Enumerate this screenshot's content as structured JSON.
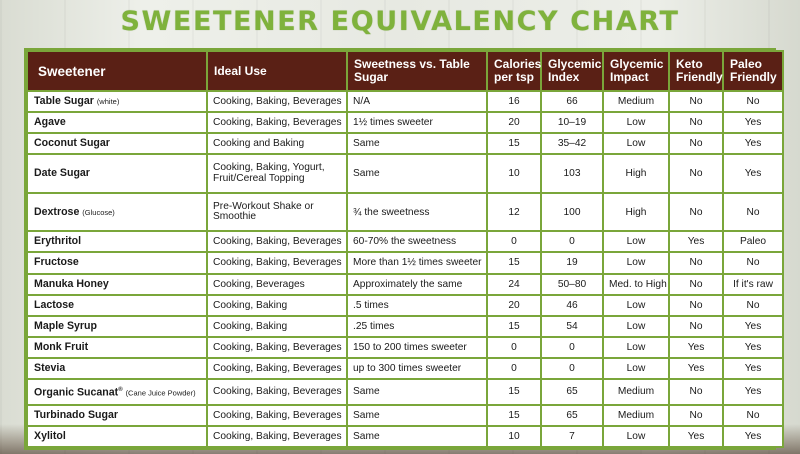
{
  "title": "SWEETENER EQUIVALENCY CHART",
  "headers": [
    "Sweetener",
    "Ideal Use",
    "Sweetness vs. Table Sugar",
    "Calories per tsp",
    "Glycemic Index",
    "Glycemic Impact",
    "Keto Friendly",
    "Paleo Friendly"
  ],
  "rows": [
    {
      "name": "Table Sugar",
      "note": "(white)",
      "mark": "",
      "use": "Cooking, Baking, Beverages",
      "sweetness": "N/A",
      "calories": "16",
      "gi": "66",
      "impact": "Medium",
      "keto": "No",
      "paleo": "No"
    },
    {
      "name": "Agave",
      "note": "",
      "mark": "",
      "use": "Cooking, Baking, Beverages",
      "sweetness": "1½ times sweeter",
      "calories": "20",
      "gi": "10–19",
      "impact": "Low",
      "keto": "No",
      "paleo": "Yes"
    },
    {
      "name": "Coconut Sugar",
      "note": "",
      "mark": "",
      "use": "Cooking and Baking",
      "sweetness": "Same",
      "calories": "15",
      "gi": "35–42",
      "impact": "Low",
      "keto": "No",
      "paleo": "Yes"
    },
    {
      "name": "Date Sugar",
      "note": "",
      "mark": "",
      "use": "Cooking, Baking, Yogurt, Fruit/Cereal Topping",
      "sweetness": "Same",
      "calories": "10",
      "gi": "103",
      "impact": "High",
      "keto": "No",
      "paleo": "Yes"
    },
    {
      "name": "Dextrose",
      "note": "(Glucose)",
      "mark": "",
      "use": "Pre-Workout Shake or Smoothie",
      "sweetness": "¾ the sweetness",
      "calories": "12",
      "gi": "100",
      "impact": "High",
      "keto": "No",
      "paleo": "No"
    },
    {
      "name": "Erythritol",
      "note": "",
      "mark": "",
      "use": "Cooking, Baking, Beverages",
      "sweetness": "60-70% the sweetness",
      "calories": "0",
      "gi": "0",
      "impact": "Low",
      "keto": "Yes",
      "paleo": "Paleo"
    },
    {
      "name": "Fructose",
      "note": "",
      "mark": "",
      "use": "Cooking, Baking, Beverages",
      "sweetness": "More than 1½ times sweeter",
      "calories": "15",
      "gi": "19",
      "impact": "Low",
      "keto": "No",
      "paleo": "No"
    },
    {
      "name": "Manuka Honey",
      "note": "",
      "mark": "",
      "use": "Cooking, Beverages",
      "sweetness": "Approximately the same",
      "calories": "24",
      "gi": "50–80",
      "impact": "Med. to High",
      "keto": "No",
      "paleo": "If it's raw"
    },
    {
      "name": "Lactose",
      "note": "",
      "mark": "",
      "use": "Cooking, Baking",
      "sweetness": ".5 times",
      "calories": "20",
      "gi": "46",
      "impact": "Low",
      "keto": "No",
      "paleo": "No"
    },
    {
      "name": "Maple Syrup",
      "note": "",
      "mark": "",
      "use": "Cooking, Baking",
      "sweetness": ".25 times",
      "calories": "15",
      "gi": "54",
      "impact": "Low",
      "keto": "No",
      "paleo": "Yes"
    },
    {
      "name": "Monk Fruit",
      "note": "",
      "mark": "",
      "use": "Cooking, Baking, Beverages",
      "sweetness": "150 to 200 times sweeter",
      "calories": "0",
      "gi": "0",
      "impact": "Low",
      "keto": "Yes",
      "paleo": "Yes"
    },
    {
      "name": "Stevia",
      "note": "",
      "mark": "",
      "use": "Cooking, Baking, Beverages",
      "sweetness": "up to 300 times sweeter",
      "calories": "0",
      "gi": "0",
      "impact": "Low",
      "keto": "Yes",
      "paleo": "Yes"
    },
    {
      "name": "Organic Sucanat",
      "note": "(Cane Juice Powder)",
      "mark": "®",
      "use": "Cooking, Baking, Beverages",
      "sweetness": "Same",
      "calories": "15",
      "gi": "65",
      "impact": "Medium",
      "keto": "No",
      "paleo": "Yes"
    },
    {
      "name": "Turbinado Sugar",
      "note": "",
      "mark": "",
      "use": "Cooking, Baking, Beverages",
      "sweetness": "Same",
      "calories": "15",
      "gi": "65",
      "impact": "Medium",
      "keto": "No",
      "paleo": "No"
    },
    {
      "name": "Xylitol",
      "note": "",
      "mark": "",
      "use": "Cooking, Baking, Beverages",
      "sweetness": "Same",
      "calories": "10",
      "gi": "7",
      "impact": "Low",
      "keto": "Yes",
      "paleo": "Yes"
    }
  ],
  "colors": {
    "title": "#7fb23c",
    "header_bg": "#5a2015",
    "border": "#7aa63a"
  }
}
